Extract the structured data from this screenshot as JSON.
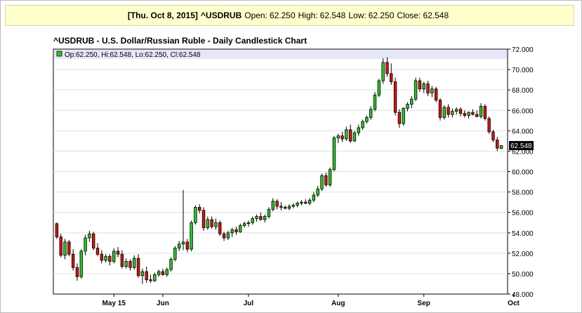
{
  "header": {
    "date": "[Thu. Oct 8, 2015]",
    "symbol": "^USDRUB",
    "open_label": "Open:",
    "open": "62.250",
    "high_label": "High:",
    "high": "62.548",
    "low_label": "Low:",
    "low": "62.250",
    "close_label": "Close:",
    "close": "62.548"
  },
  "chart_data": {
    "type": "candlestick",
    "title": "^USDRUB - U.S. Dollar/Russian Ruble - Daily Candlestick Chart",
    "legend_text": "Op:62.250, Hi:62.548, Lo:62.250, Cl:62.548",
    "last_value_label": "62.548",
    "ylim": [
      48,
      72
    ],
    "y_ticks": [
      "48.000",
      "50.000",
      "52.000",
      "54.000",
      "56.000",
      "58.000",
      "60.000",
      "62.000",
      "64.000",
      "66.000",
      "68.000",
      "70.000",
      "72.000"
    ],
    "x_labels": [
      {
        "label": "May 15",
        "index": 14
      },
      {
        "label": "Jun",
        "index": 26
      },
      {
        "label": "Jul",
        "index": 47
      },
      {
        "label": "Aug",
        "index": 69
      },
      {
        "label": "Sep",
        "index": 90
      },
      {
        "label": "Oct",
        "index": 112
      }
    ],
    "up_color": "#22cc22",
    "down_color": "#dd1111",
    "candles": [
      [
        54.9,
        55.0,
        53.4,
        53.6
      ],
      [
        53.6,
        53.9,
        51.6,
        51.8
      ],
      [
        51.8,
        53.4,
        51.4,
        53.1
      ],
      [
        53.1,
        53.3,
        51.7,
        51.9
      ],
      [
        51.9,
        52.4,
        50.3,
        50.6
      ],
      [
        50.6,
        51.0,
        49.3,
        49.7
      ],
      [
        49.7,
        52.4,
        49.5,
        52.2
      ],
      [
        52.2,
        53.8,
        51.8,
        53.5
      ],
      [
        53.5,
        54.2,
        53.1,
        53.9
      ],
      [
        53.9,
        54.1,
        52.3,
        52.5
      ],
      [
        52.5,
        53.0,
        51.7,
        51.9
      ],
      [
        51.9,
        52.3,
        51.0,
        51.3
      ],
      [
        51.3,
        51.9,
        51.1,
        51.7
      ],
      [
        51.7,
        51.9,
        50.8,
        51.2
      ],
      [
        51.2,
        52.5,
        51.0,
        52.2
      ],
      [
        52.2,
        52.6,
        51.6,
        51.9
      ],
      [
        51.9,
        52.3,
        50.5,
        50.7
      ],
      [
        50.7,
        51.5,
        50.5,
        51.2
      ],
      [
        51.2,
        51.4,
        50.3,
        50.6
      ],
      [
        50.6,
        51.8,
        50.4,
        51.5
      ],
      [
        51.5,
        51.9,
        49.6,
        49.8
      ],
      [
        49.8,
        50.5,
        49.0,
        50.2
      ],
      [
        50.2,
        50.7,
        49.1,
        49.4
      ],
      [
        49.4,
        49.9,
        49.1,
        49.3
      ],
      [
        49.3,
        50.1,
        49.2,
        49.9
      ],
      [
        49.9,
        50.4,
        49.7,
        50.2
      ],
      [
        50.2,
        50.5,
        49.8,
        49.9
      ],
      [
        49.9,
        50.6,
        49.7,
        50.4
      ],
      [
        50.4,
        51.6,
        50.2,
        51.4
      ],
      [
        51.4,
        52.7,
        51.2,
        52.5
      ],
      [
        52.5,
        53.2,
        52.2,
        52.9
      ],
      [
        52.9,
        58.2,
        52.3,
        53.1
      ],
      [
        53.1,
        53.4,
        52.1,
        52.4
      ],
      [
        52.4,
        55.2,
        52.2,
        55.0
      ],
      [
        55.0,
        56.7,
        54.8,
        56.5
      ],
      [
        56.5,
        56.8,
        55.9,
        56.2
      ],
      [
        56.2,
        56.5,
        54.2,
        54.5
      ],
      [
        54.5,
        55.6,
        54.3,
        55.3
      ],
      [
        55.3,
        55.6,
        54.4,
        54.6
      ],
      [
        54.6,
        55.4,
        54.3,
        55.0
      ],
      [
        55.0,
        55.2,
        53.7,
        53.9
      ],
      [
        53.9,
        54.1,
        53.2,
        53.5
      ],
      [
        53.5,
        54.2,
        53.3,
        54.0
      ],
      [
        54.0,
        54.5,
        53.6,
        54.3
      ],
      [
        54.3,
        54.6,
        53.8,
        54.1
      ],
      [
        54.1,
        54.9,
        54.0,
        54.7
      ],
      [
        54.7,
        55.1,
        54.5,
        54.9
      ],
      [
        54.9,
        55.2,
        54.6,
        55.0
      ],
      [
        55.0,
        55.6,
        54.8,
        55.4
      ],
      [
        55.4,
        55.8,
        55.1,
        55.6
      ],
      [
        55.6,
        56.0,
        55.2,
        55.3
      ],
      [
        55.3,
        55.8,
        55.0,
        55.6
      ],
      [
        55.6,
        56.5,
        55.4,
        56.3
      ],
      [
        56.3,
        57.4,
        56.1,
        57.1
      ],
      [
        57.1,
        57.3,
        56.3,
        56.6
      ],
      [
        56.6,
        57.0,
        56.2,
        56.5
      ],
      [
        56.5,
        56.7,
        56.3,
        56.4
      ],
      [
        56.4,
        56.8,
        56.2,
        56.6
      ],
      [
        56.6,
        56.9,
        56.4,
        56.7
      ],
      [
        56.7,
        57.1,
        56.5,
        56.9
      ],
      [
        56.9,
        57.2,
        56.7,
        57.0
      ],
      [
        57.0,
        57.3,
        56.8,
        56.9
      ],
      [
        56.9,
        57.4,
        56.7,
        57.2
      ],
      [
        57.2,
        58.0,
        57.0,
        57.7
      ],
      [
        57.7,
        58.6,
        57.5,
        58.3
      ],
      [
        58.3,
        59.8,
        58.1,
        59.6
      ],
      [
        59.6,
        59.9,
        58.5,
        58.7
      ],
      [
        58.7,
        60.4,
        58.5,
        60.2
      ],
      [
        60.2,
        63.5,
        60.0,
        63.3
      ],
      [
        63.3,
        63.7,
        62.8,
        63.5
      ],
      [
        63.5,
        63.9,
        62.9,
        63.2
      ],
      [
        63.2,
        64.4,
        63.0,
        64.1
      ],
      [
        64.1,
        64.6,
        62.8,
        63.0
      ],
      [
        63.0,
        64.0,
        62.9,
        63.8
      ],
      [
        63.8,
        64.6,
        63.5,
        64.3
      ],
      [
        64.3,
        65.1,
        64.1,
        64.9
      ],
      [
        64.9,
        65.5,
        64.7,
        65.3
      ],
      [
        65.3,
        66.4,
        65.1,
        66.1
      ],
      [
        66.1,
        67.8,
        65.9,
        67.5
      ],
      [
        67.5,
        69.1,
        67.3,
        68.9
      ],
      [
        68.9,
        71.1,
        68.6,
        70.7
      ],
      [
        70.7,
        71.2,
        69.3,
        69.6
      ],
      [
        69.6,
        70.6,
        68.5,
        68.8
      ],
      [
        68.8,
        69.2,
        65.5,
        65.8
      ],
      [
        65.8,
        66.1,
        64.3,
        64.7
      ],
      [
        64.7,
        66.3,
        64.5,
        66.2
      ],
      [
        66.2,
        66.8,
        65.9,
        66.6
      ],
      [
        66.6,
        67.4,
        66.2,
        67.1
      ],
      [
        67.1,
        69.2,
        66.9,
        68.9
      ],
      [
        68.9,
        69.2,
        67.8,
        68.1
      ],
      [
        68.1,
        68.8,
        67.7,
        68.6
      ],
      [
        68.6,
        68.9,
        67.4,
        67.7
      ],
      [
        67.7,
        68.4,
        67.3,
        68.1
      ],
      [
        68.1,
        68.3,
        66.8,
        67.0
      ],
      [
        67.0,
        67.2,
        65.0,
        65.3
      ],
      [
        65.3,
        66.5,
        65.1,
        66.3
      ],
      [
        66.3,
        66.6,
        65.3,
        65.6
      ],
      [
        65.6,
        66.2,
        65.3,
        65.9
      ],
      [
        65.9,
        66.3,
        65.6,
        66.1
      ],
      [
        66.1,
        66.3,
        65.4,
        65.7
      ],
      [
        65.7,
        66.0,
        65.3,
        65.5
      ],
      [
        65.5,
        65.9,
        65.2,
        65.8
      ],
      [
        65.8,
        66.1,
        65.5,
        65.6
      ],
      [
        65.6,
        66.0,
        65.3,
        65.4
      ],
      [
        65.4,
        66.7,
        65.2,
        66.4
      ],
      [
        66.4,
        66.6,
        65.0,
        65.2
      ],
      [
        65.2,
        65.4,
        63.7,
        63.9
      ],
      [
        63.9,
        64.1,
        62.9,
        63.1
      ],
      [
        63.1,
        63.4,
        62.0,
        62.3
      ],
      [
        62.25,
        62.548,
        62.25,
        62.548
      ]
    ]
  }
}
